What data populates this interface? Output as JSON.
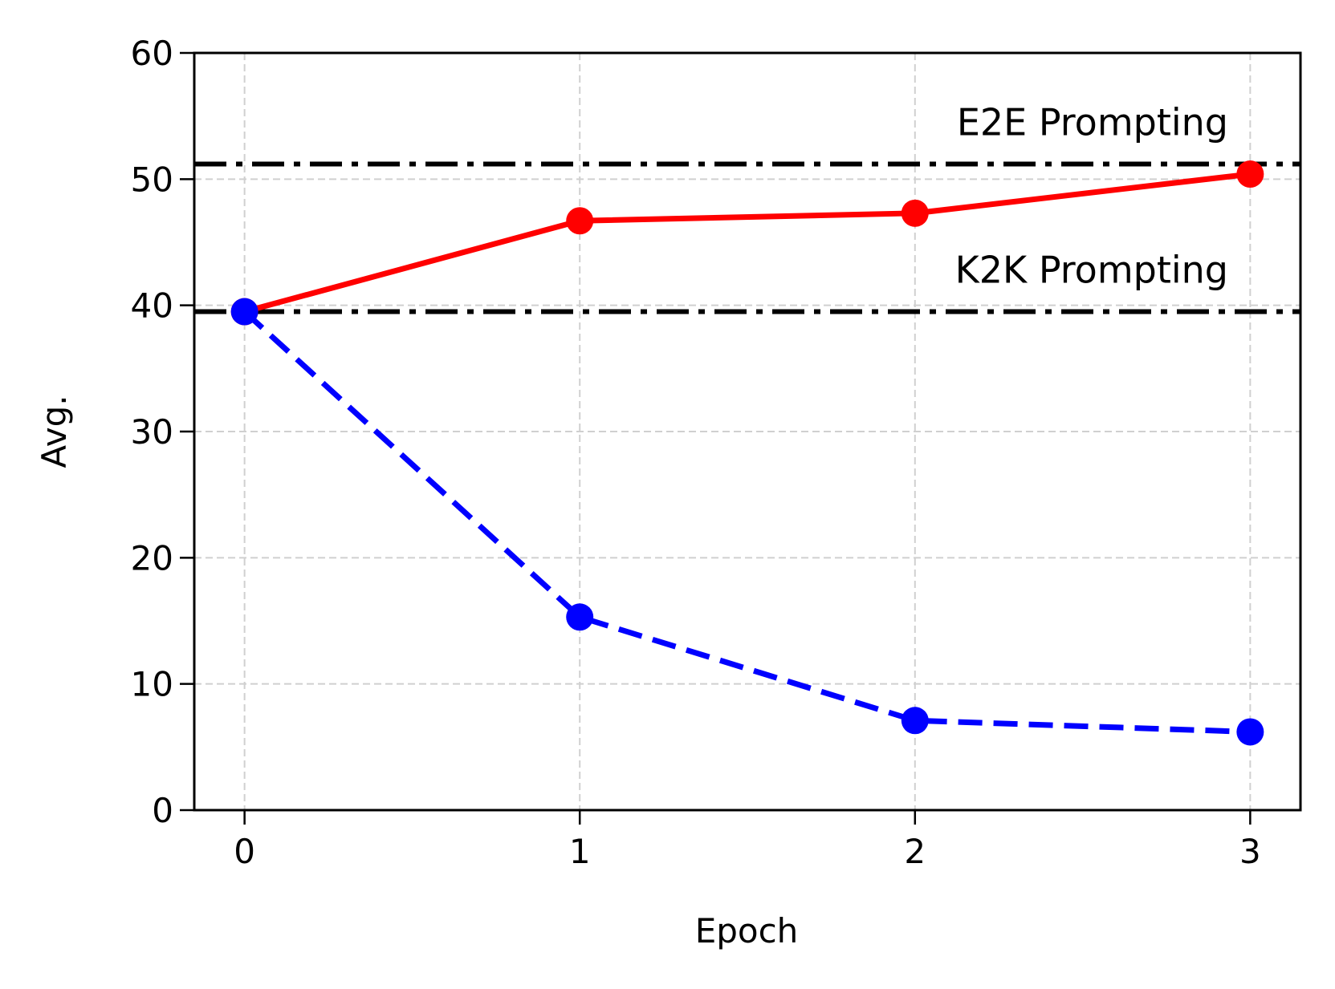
{
  "chart_data": {
    "type": "line",
    "xlabel": "Epoch",
    "ylabel": "Avg.",
    "x": [
      0,
      1,
      2,
      3
    ],
    "series": [
      {
        "color": "#ff0000",
        "linestyle": "solid",
        "values": [
          39.5,
          46.7,
          47.3,
          50.4
        ]
      },
      {
        "color": "#0000ff",
        "linestyle": "dashed",
        "values": [
          39.5,
          15.3,
          7.1,
          6.2
        ]
      }
    ],
    "hlines": [
      {
        "value": 51.2,
        "label": "E2E Prompting",
        "color": "#000000"
      },
      {
        "value": 39.5,
        "label": "K2K Prompting",
        "color": "#000000"
      }
    ],
    "xlim": [
      -0.15,
      3.15
    ],
    "xticks": [
      0,
      1,
      2,
      3
    ],
    "ylim": [
      0,
      60
    ],
    "yticks": [
      0,
      10,
      20,
      30,
      40,
      50,
      60
    ],
    "grid": true
  }
}
